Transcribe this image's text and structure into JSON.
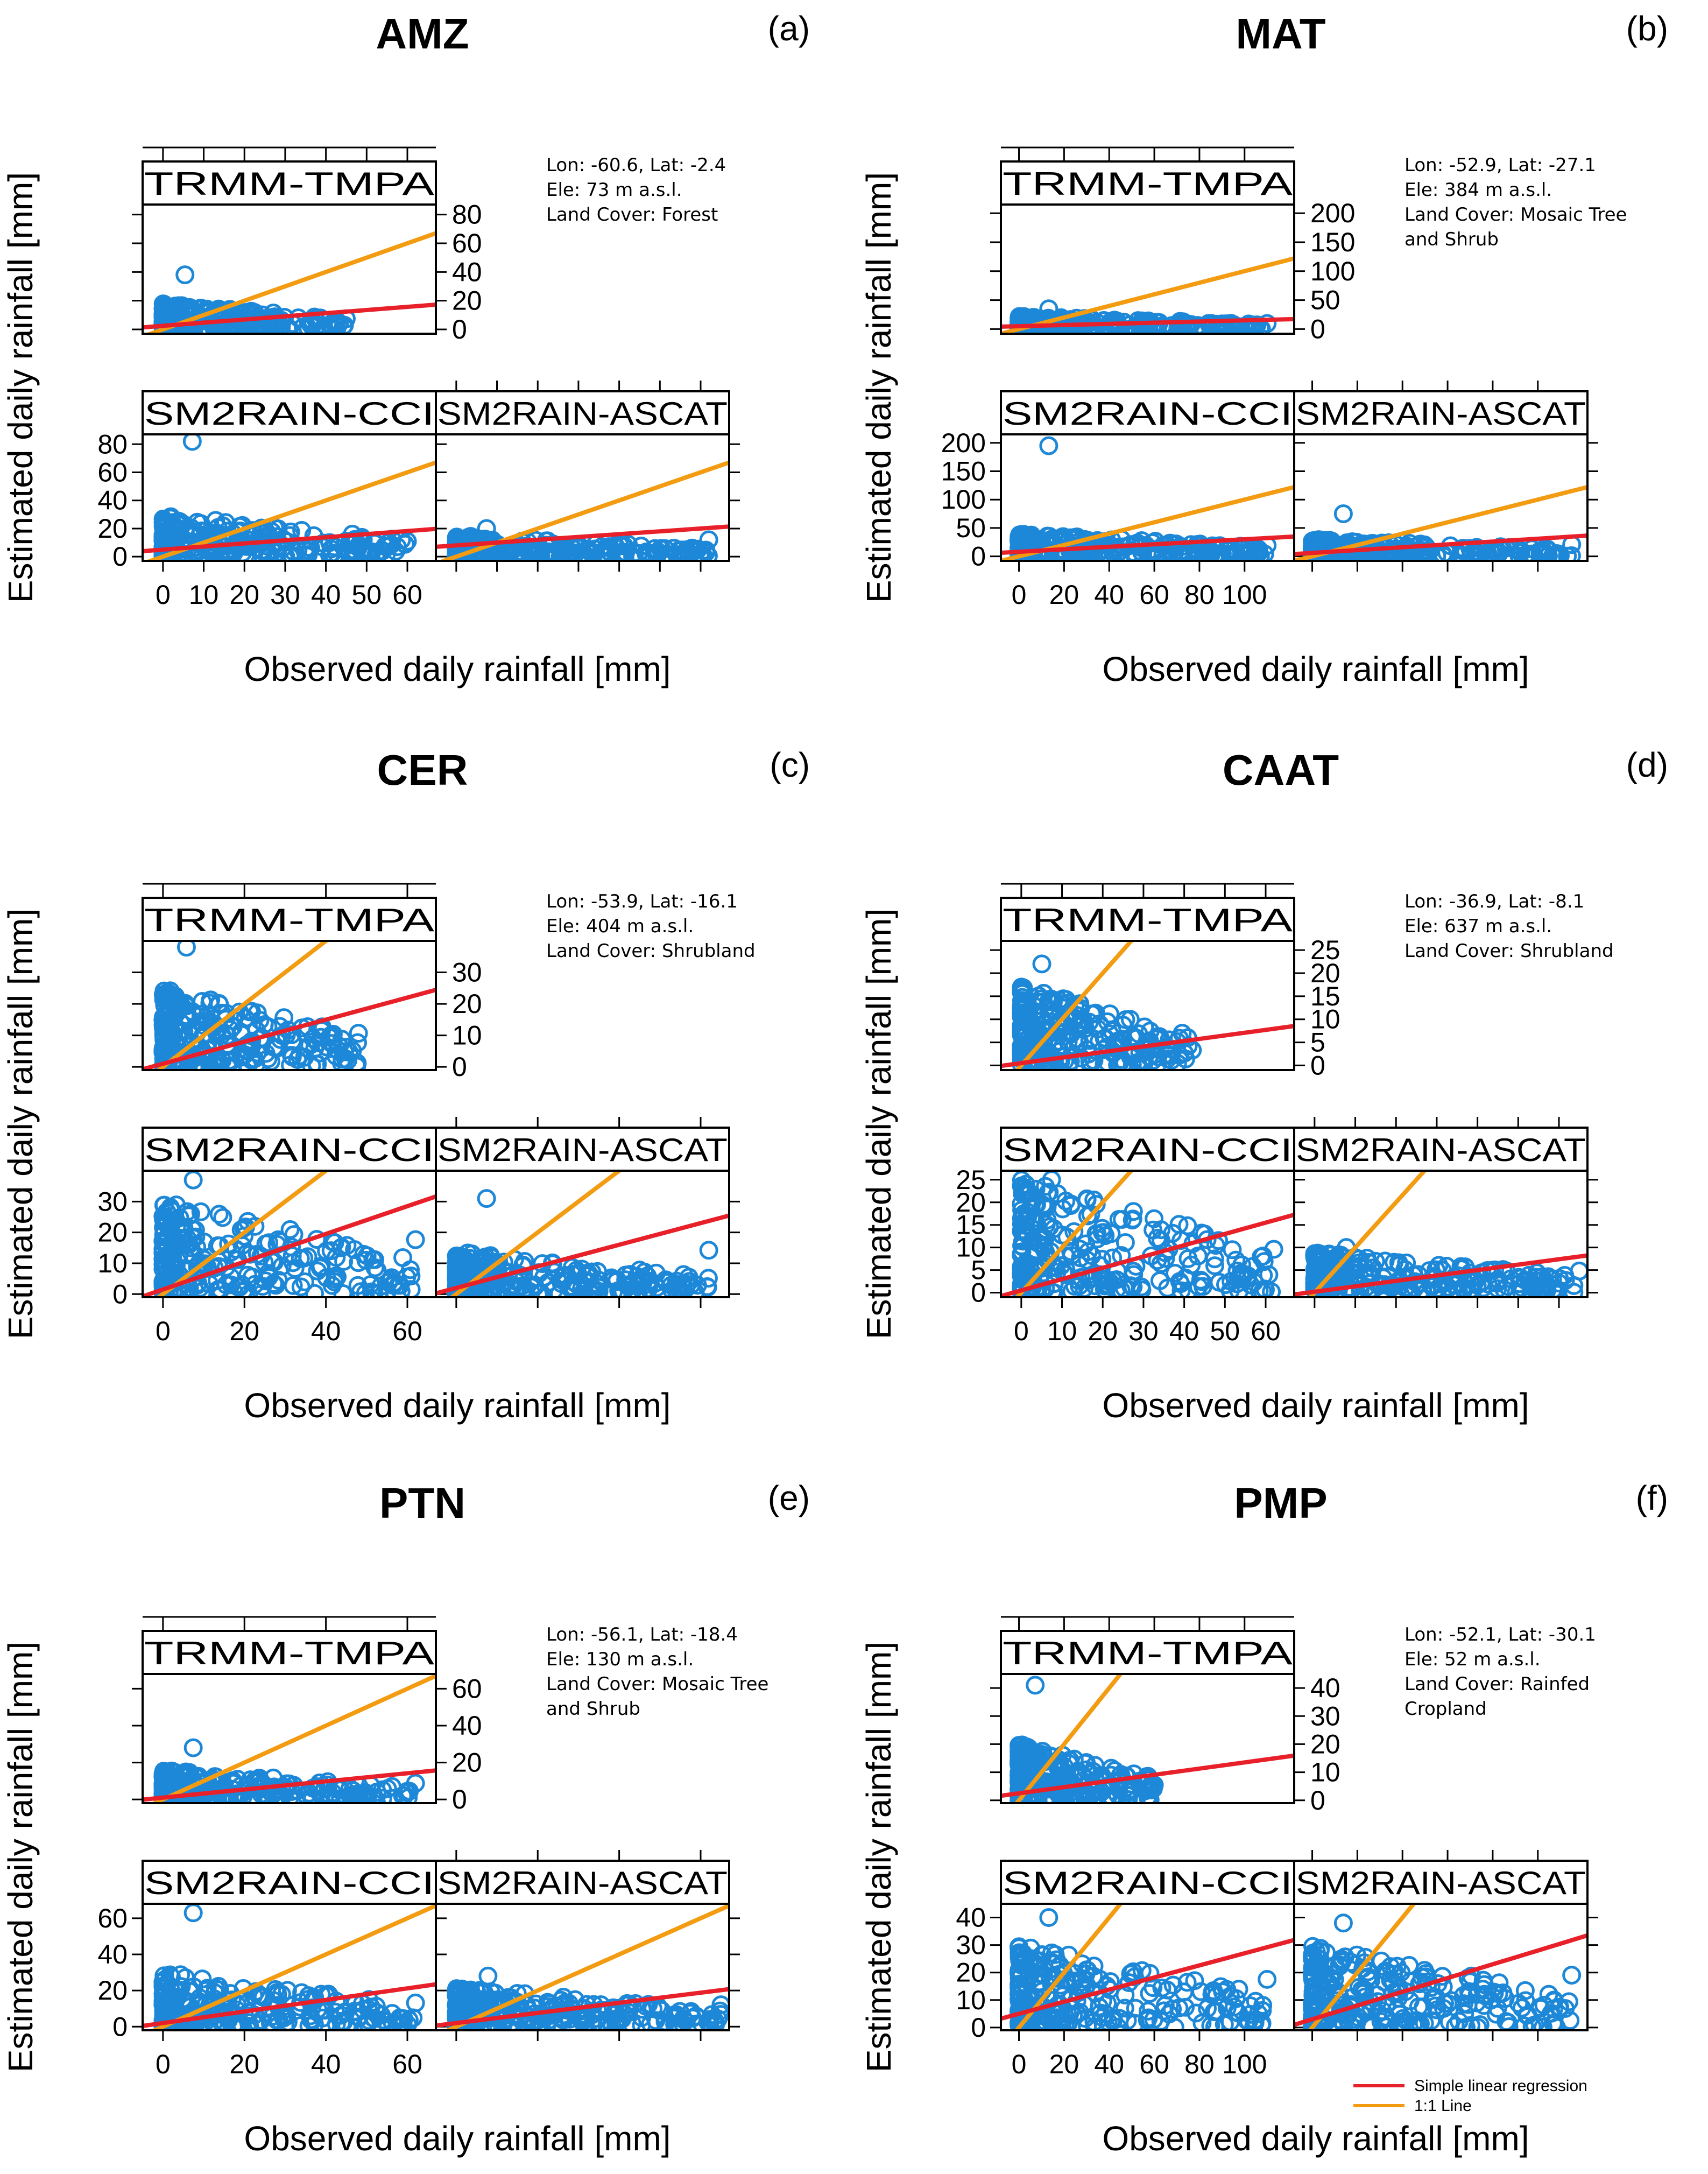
{
  "axis_labels": {
    "x": "Observed daily rainfall [mm]",
    "y": "Estimated daily rainfall [mm]"
  },
  "strip_labels": [
    "TRMM-TMPA",
    "SM2RAIN-CCI",
    "SM2RAIN-ASCAT"
  ],
  "legend": {
    "regression": "Simple linear regression",
    "one_to_one": "1:1 Line",
    "regression_color": "#e8202a",
    "one_to_one_color": "#f39c12",
    "point_color": "#1e88d8"
  },
  "chart_data": [
    {
      "type": "scatter",
      "title": "AMZ",
      "letter": "(a)",
      "info": [
        "Lon: -60.6, Lat: -2.4",
        "Ele: 73 m a.s.l.",
        "Land Cover: Forest"
      ],
      "xlabel": "Observed daily rainfall [mm]",
      "ylabel": "Estimated daily rainfall [mm]",
      "xlim": [
        -5,
        67
      ],
      "xticks": [
        0,
        10,
        20,
        30,
        40,
        50,
        60
      ],
      "panels": [
        {
          "name": "TRMM-TMPA",
          "ylim": [
            -3,
            87
          ],
          "yticks": [
            0,
            20,
            40,
            60,
            80
          ],
          "reg": [
            2.5,
            0.22
          ],
          "xmax": 45,
          "ymax": 38,
          "bulk": 18
        },
        {
          "name": "SM2RAIN-CCI",
          "ylim": [
            -3,
            87
          ],
          "yticks": [
            0,
            20,
            40,
            60,
            80
          ],
          "reg": [
            5,
            0.22
          ],
          "xmax": 60,
          "ymax": 82,
          "bulk": 30
        },
        {
          "name": "SM2RAIN-ASCAT",
          "ylim": [
            -3,
            87
          ],
          "yticks": [
            0,
            20,
            40,
            60,
            80
          ],
          "reg": [
            8,
            0.2
          ],
          "xmax": 62,
          "ymax": 20,
          "bulk": 15
        }
      ]
    },
    {
      "type": "scatter",
      "title": "MAT",
      "letter": "(b)",
      "info": [
        "Lon:  -52.9, Lat: -27.1",
        "Ele: 384 m a.s.l.",
        "Land Cover: Mosaic Tree",
        "and Shrub"
      ],
      "xlabel": "Observed daily rainfall [mm]",
      "ylabel": "Estimated daily rainfall [mm]",
      "xlim": [
        -8,
        122
      ],
      "xticks": [
        0,
        20,
        40,
        60,
        80,
        100
      ],
      "panels": [
        {
          "name": "TRMM-TMPA",
          "ylim": [
            -8,
            215
          ],
          "yticks": [
            0,
            50,
            100,
            150,
            200
          ],
          "reg": [
            5,
            0.1
          ],
          "xmax": 110,
          "ymax": 35,
          "bulk": 22
        },
        {
          "name": "SM2RAIN-CCI",
          "ylim": [
            -8,
            215
          ],
          "yticks": [
            0,
            50,
            100,
            150,
            200
          ],
          "reg": [
            8,
            0.22
          ],
          "xmax": 110,
          "ymax": 195,
          "bulk": 40
        },
        {
          "name": "SM2RAIN-ASCAT",
          "ylim": [
            -8,
            215
          ],
          "yticks": [
            0,
            50,
            100,
            150,
            200
          ],
          "reg": [
            6,
            0.25
          ],
          "xmax": 115,
          "ymax": 75,
          "bulk": 30
        }
      ]
    },
    {
      "type": "scatter",
      "title": "CER",
      "letter": "(c)",
      "info": [
        "Lon:  -53.9, Lat: -16.1",
        "Ele:  404 m a.s.l.",
        "Land Cover: Shrubland"
      ],
      "xlabel": "Observed daily rainfall [mm]",
      "ylabel": "Estimated daily rainfall [mm]",
      "xlim": [
        -5,
        67
      ],
      "xticks": [
        0,
        20,
        40,
        60
      ],
      "panels": [
        {
          "name": "TRMM-TMPA",
          "ylim": [
            -1,
            40
          ],
          "yticks": [
            0,
            10,
            20,
            30
          ],
          "reg": [
            1,
            0.35
          ],
          "xmax": 48,
          "ymax": 38,
          "bulk": 25
        },
        {
          "name": "SM2RAIN-CCI",
          "ylim": [
            -1,
            40
          ],
          "yticks": [
            0,
            10,
            20,
            30
          ],
          "reg": [
            1.5,
            0.45
          ],
          "xmax": 62,
          "ymax": 37,
          "bulk": 30
        },
        {
          "name": "SM2RAIN-ASCAT",
          "ylim": [
            -1,
            40
          ],
          "yticks": [
            0,
            10,
            20,
            30
          ],
          "reg": [
            2,
            0.35
          ],
          "xmax": 62,
          "ymax": 31,
          "bulk": 14
        }
      ]
    },
    {
      "type": "scatter",
      "title": "CAAT",
      "letter": "(d)",
      "info": [
        "Lon:  -36.9, Lat: -8.1",
        "Ele: 637 m a.s.l.",
        "Land Cover: Shrubland"
      ],
      "xlabel": "Observed daily rainfall [mm]",
      "ylabel": "Estimated daily rainfall [mm]",
      "xlim": [
        -5,
        67
      ],
      "xticks": [
        0,
        10,
        20,
        30,
        40,
        50,
        60
      ],
      "panels": [
        {
          "name": "TRMM-TMPA",
          "ylim": [
            -1,
            27
          ],
          "yticks": [
            0,
            5,
            10,
            15,
            20,
            25
          ],
          "reg": [
            0.5,
            0.12
          ],
          "xmax": 42,
          "ymax": 22,
          "bulk": 17
        },
        {
          "name": "SM2RAIN-CCI",
          "ylim": [
            -1,
            27
          ],
          "yticks": [
            0,
            5,
            10,
            15,
            20,
            25
          ],
          "reg": [
            0.5,
            0.25
          ],
          "xmax": 62,
          "ymax": 25,
          "bulk": 25
        },
        {
          "name": "SM2RAIN-ASCAT",
          "ylim": [
            -1,
            27
          ],
          "yticks": [
            0,
            5,
            10,
            15,
            20,
            25
          ],
          "reg": [
            0.2,
            0.12
          ],
          "xmax": 65,
          "ymax": 10,
          "bulk": 9
        }
      ]
    },
    {
      "type": "scatter",
      "title": "PTN",
      "letter": "(e)",
      "info": [
        "Lon:  -56.1, Lat: -18.4",
        "Ele:  130 m a.s.l.",
        "Land Cover: Mosaic Tree",
        " and Shrub"
      ],
      "xlabel": "Observed daily rainfall [mm]",
      "ylabel": "Estimated daily rainfall [mm]",
      "xlim": [
        -5,
        67
      ],
      "xticks": [
        0,
        20,
        40,
        60
      ],
      "panels": [
        {
          "name": "TRMM-TMPA",
          "ylim": [
            -2,
            68
          ],
          "yticks": [
            0,
            20,
            40,
            60
          ],
          "reg": [
            1,
            0.22
          ],
          "xmax": 62,
          "ymax": 28,
          "bulk": 16
        },
        {
          "name": "SM2RAIN-CCI",
          "ylim": [
            -2,
            68
          ],
          "yticks": [
            0,
            20,
            40,
            60
          ],
          "reg": [
            2,
            0.32
          ],
          "xmax": 62,
          "ymax": 63,
          "bulk": 30
        },
        {
          "name": "SM2RAIN-ASCAT",
          "ylim": [
            -2,
            68
          ],
          "yticks": [
            0,
            20,
            40,
            60
          ],
          "reg": [
            2,
            0.28
          ],
          "xmax": 65,
          "ymax": 28,
          "bulk": 22
        }
      ]
    },
    {
      "type": "scatter",
      "title": "PMP",
      "letter": "(f)",
      "info": [
        "Lon:  -52.1, Lat: -30.1",
        "Ele:  52 m a.s.l.",
        "Land Cover: Rainfed",
        "Cropland"
      ],
      "xlabel": "Observed daily rainfall [mm]",
      "ylabel": "Estimated daily rainfall [mm]",
      "xlim": [
        -8,
        122
      ],
      "xticks": [
        0,
        20,
        40,
        60,
        80,
        100
      ],
      "panels": [
        {
          "name": "TRMM-TMPA",
          "ylim": [
            -1,
            45
          ],
          "yticks": [
            0,
            10,
            20,
            30,
            40
          ],
          "reg": [
            2.5,
            0.11
          ],
          "xmax": 60,
          "ymax": 41,
          "bulk": 20
        },
        {
          "name": "SM2RAIN-CCI",
          "ylim": [
            -1,
            45
          ],
          "yticks": [
            0,
            10,
            20,
            30,
            40
          ],
          "reg": [
            5,
            0.22
          ],
          "xmax": 110,
          "ymax": 40,
          "bulk": 30
        },
        {
          "name": "SM2RAIN-ASCAT",
          "ylim": [
            -1,
            45
          ],
          "yticks": [
            0,
            10,
            20,
            30,
            40
          ],
          "reg": [
            3,
            0.25
          ],
          "xmax": 115,
          "ymax": 38,
          "bulk": 30
        }
      ]
    }
  ]
}
